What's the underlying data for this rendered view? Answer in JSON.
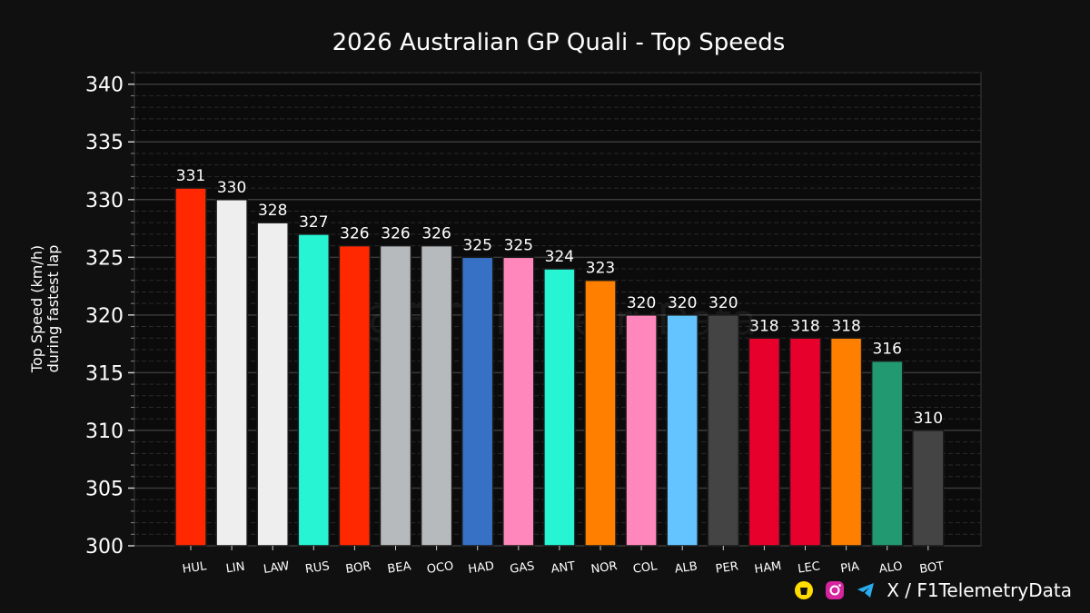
{
  "chart_data": {
    "type": "bar",
    "title": "2026 Australian GP Quali - Top Speeds",
    "ylabel_line1": "Top Speed (km/h)",
    "ylabel_line2": "during fastest lap",
    "ylim": [
      300,
      341
    ],
    "yticks": [
      300,
      305,
      310,
      315,
      320,
      325,
      330,
      335,
      340
    ],
    "grid": true,
    "categories": [
      "HUL",
      "LIN",
      "LAW",
      "RUS",
      "BOR",
      "BEA",
      "OCO",
      "HAD",
      "GAS",
      "ANT",
      "NOR",
      "COL",
      "ALB",
      "PER",
      "HAM",
      "LEC",
      "PIA",
      "ALO",
      "BOT"
    ],
    "values": [
      331,
      330,
      328,
      327,
      326,
      326,
      326,
      325,
      325,
      324,
      323,
      320,
      320,
      320,
      318,
      318,
      318,
      316,
      310
    ],
    "colors": [
      "#ff2800",
      "#eeeeee",
      "#eeeeee",
      "#27f4d2",
      "#ff2800",
      "#b6babd",
      "#b6babd",
      "#3671c6",
      "#ff87bc",
      "#27f4d2",
      "#ff8000",
      "#ff87bc",
      "#64c4ff",
      "#444444",
      "#e8002d",
      "#e8002d",
      "#ff8000",
      "#229971",
      "#444444"
    ],
    "watermark": "@F1TelemetryData"
  },
  "footer": {
    "handle": "X / F1TelemetryData",
    "icons": [
      "buymeacoffee-icon",
      "instagram-icon",
      "telegram-icon"
    ]
  }
}
